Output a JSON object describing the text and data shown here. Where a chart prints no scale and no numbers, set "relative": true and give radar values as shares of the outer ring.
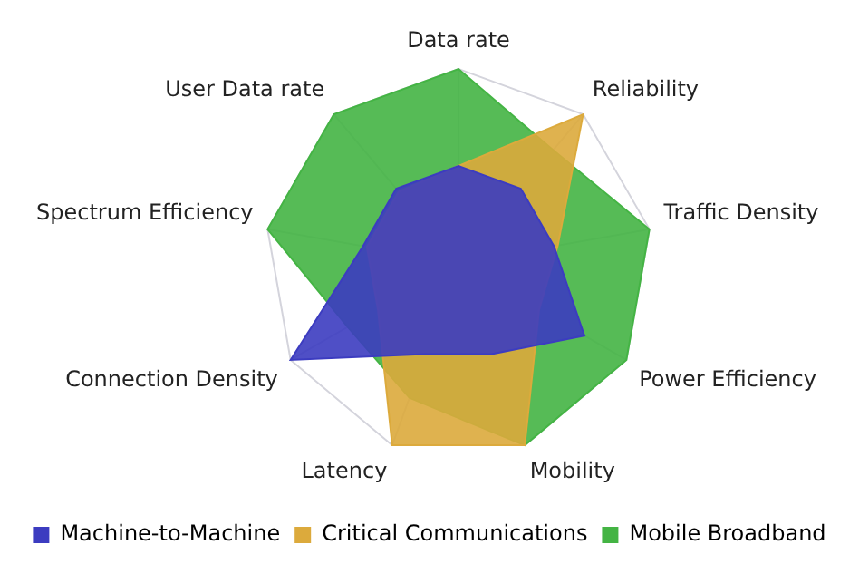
{
  "chart_data": {
    "type": "radar",
    "relative": true,
    "categories": [
      "Data rate",
      "Reliability",
      "Traffic Density",
      "Power Efficiency",
      "Mobility",
      "Latency",
      "Connection Density",
      "Spectrum Efficiency",
      "User Data rate"
    ],
    "series": [
      {
        "name": "Machine-to-Machine",
        "color": "#3c3cc0",
        "values": [
          0.5,
          0.5,
          0.5,
          0.75,
          0.5,
          0.5,
          1,
          0.5,
          0.5
        ]
      },
      {
        "name": "Critical Communications",
        "color": "#dcaa3c",
        "values": [
          0.5,
          1,
          0.52,
          0.48,
          1,
          1,
          0.48,
          0.48,
          0.48
        ]
      },
      {
        "name": "Mobile Broadband",
        "color": "#44b444",
        "values": [
          1,
          0.76,
          1,
          1,
          1,
          0.74,
          0.66,
          1,
          1
        ]
      }
    ],
    "legend": "bottom",
    "grid": true
  }
}
